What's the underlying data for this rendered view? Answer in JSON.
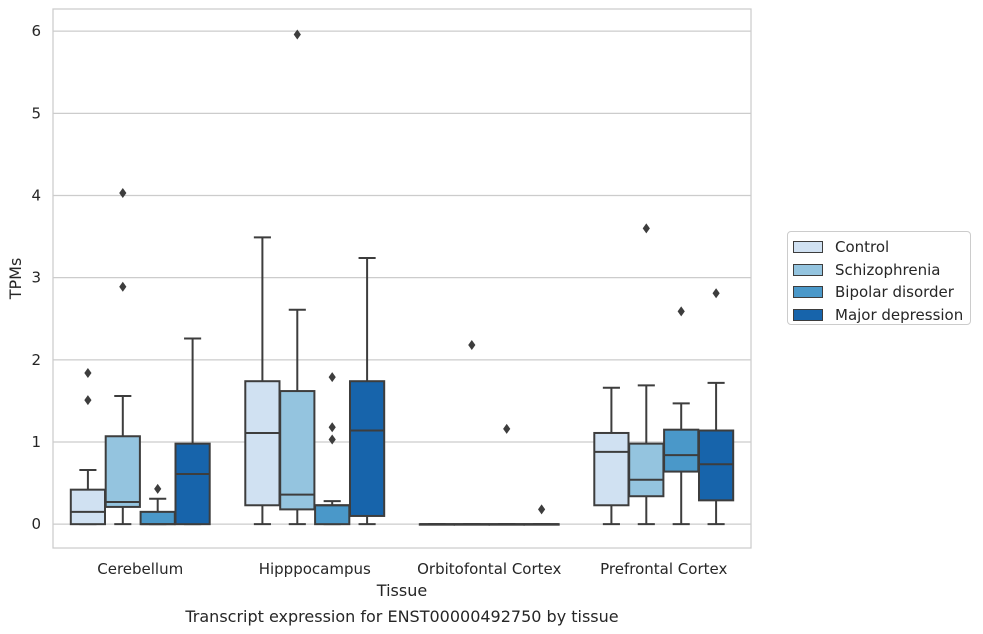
{
  "chart_data": {
    "type": "boxplot",
    "caption": "Transcript expression for ENST00000492750 by tissue",
    "xlabel": "Tissue",
    "ylabel": "TPMs",
    "ylim": [
      -0.29,
      6.27
    ],
    "yticks": [
      0,
      1,
      2,
      3,
      4,
      5,
      6
    ],
    "grid": true,
    "legend_position": "right",
    "categories": [
      "Cerebellum",
      "Hipppocampus",
      "Orbitofontal Cortex",
      "Prefrontal Cortex"
    ],
    "series": [
      {
        "name": "Control",
        "color": "#d0e1f2",
        "boxes": [
          {
            "whislo": 0,
            "q1": 0,
            "med": 0.15,
            "q3": 0.42,
            "whishi": 0.66,
            "fliers": [
              1.84,
              1.51
            ]
          },
          {
            "whislo": 0,
            "q1": 0.23,
            "med": 1.11,
            "q3": 1.74,
            "whishi": 3.49,
            "fliers": []
          },
          {
            "whislo": 0,
            "q1": 0,
            "med": 0,
            "q3": 0,
            "whishi": 0,
            "fliers": []
          },
          {
            "whislo": 0,
            "q1": 0.23,
            "med": 0.88,
            "q3": 1.11,
            "whishi": 1.66,
            "fliers": []
          }
        ]
      },
      {
        "name": "Schizophrenia",
        "color": "#94c4df",
        "boxes": [
          {
            "whislo": 0,
            "q1": 0.21,
            "med": 0.27,
            "q3": 1.07,
            "whishi": 1.56,
            "fliers": [
              4.03,
              2.89
            ]
          },
          {
            "whislo": 0,
            "q1": 0.18,
            "med": 0.36,
            "q3": 1.62,
            "whishi": 2.61,
            "fliers": [
              5.96
            ]
          },
          {
            "whislo": 0,
            "q1": 0,
            "med": 0,
            "q3": 0,
            "whishi": 0,
            "fliers": [
              2.18
            ]
          },
          {
            "whislo": 0,
            "q1": 0.34,
            "med": 0.54,
            "q3": 0.98,
            "whishi": 1.69,
            "fliers": [
              3.6
            ]
          }
        ]
      },
      {
        "name": "Bipolar disorder",
        "color": "#4a98c9",
        "boxes": [
          {
            "whislo": 0,
            "q1": 0,
            "med": 0,
            "q3": 0.15,
            "whishi": 0.31,
            "fliers": [
              0.43
            ]
          },
          {
            "whislo": 0,
            "q1": 0,
            "med": 0.23,
            "q3": 0.23,
            "whishi": 0.28,
            "fliers": [
              1.79,
              1.18,
              1.03
            ]
          },
          {
            "whislo": 0,
            "q1": 0,
            "med": 0,
            "q3": 0,
            "whishi": 0,
            "fliers": [
              1.16
            ]
          },
          {
            "whislo": 0,
            "q1": 0.64,
            "med": 0.84,
            "q3": 1.15,
            "whishi": 1.47,
            "fliers": [
              2.59
            ]
          }
        ]
      },
      {
        "name": "Major depression",
        "color": "#1764ab",
        "boxes": [
          {
            "whislo": 0,
            "q1": 0,
            "med": 0.61,
            "q3": 0.98,
            "whishi": 2.26,
            "fliers": []
          },
          {
            "whislo": 0,
            "q1": 0.1,
            "med": 1.14,
            "q3": 1.74,
            "whishi": 3.24,
            "fliers": []
          },
          {
            "whislo": 0,
            "q1": 0,
            "med": 0,
            "q3": 0,
            "whishi": 0,
            "fliers": [
              0.18
            ]
          },
          {
            "whislo": 0,
            "q1": 0.29,
            "med": 0.73,
            "q3": 1.14,
            "whishi": 1.72,
            "fliers": [
              2.81
            ]
          }
        ]
      }
    ]
  }
}
